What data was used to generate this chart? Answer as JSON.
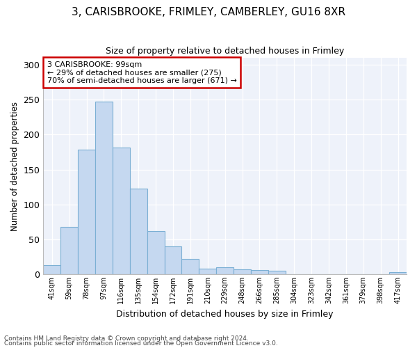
{
  "title1": "3, CARISBROOKE, FRIMLEY, CAMBERLEY, GU16 8XR",
  "title2": "Size of property relative to detached houses in Frimley",
  "xlabel": "Distribution of detached houses by size in Frimley",
  "ylabel": "Number of detached properties",
  "bar_labels": [
    "41sqm",
    "59sqm",
    "78sqm",
    "97sqm",
    "116sqm",
    "135sqm",
    "154sqm",
    "172sqm",
    "191sqm",
    "210sqm",
    "229sqm",
    "248sqm",
    "266sqm",
    "285sqm",
    "304sqm",
    "323sqm",
    "342sqm",
    "361sqm",
    "379sqm",
    "398sqm",
    "417sqm"
  ],
  "bar_values": [
    13,
    68,
    178,
    247,
    181,
    123,
    62,
    40,
    22,
    8,
    10,
    7,
    6,
    5,
    0,
    0,
    0,
    0,
    0,
    0,
    3
  ],
  "bar_color": "#c5d8f0",
  "bar_edge_color": "#7bafd4",
  "annotation_title": "3 CARISBROOKE: 99sqm",
  "annotation_line1": "← 29% of detached houses are smaller (275)",
  "annotation_line2": "70% of semi-detached houses are larger (671) →",
  "annotation_box_facecolor": "#ffffff",
  "annotation_box_edgecolor": "#cc0000",
  "footnote1": "Contains HM Land Registry data © Crown copyright and database right 2024.",
  "footnote2": "Contains public sector information licensed under the Open Government Licence v3.0.",
  "plot_bgcolor": "#eef2fa",
  "ylim": [
    0,
    310
  ],
  "yticks": [
    0,
    50,
    100,
    150,
    200,
    250,
    300
  ]
}
